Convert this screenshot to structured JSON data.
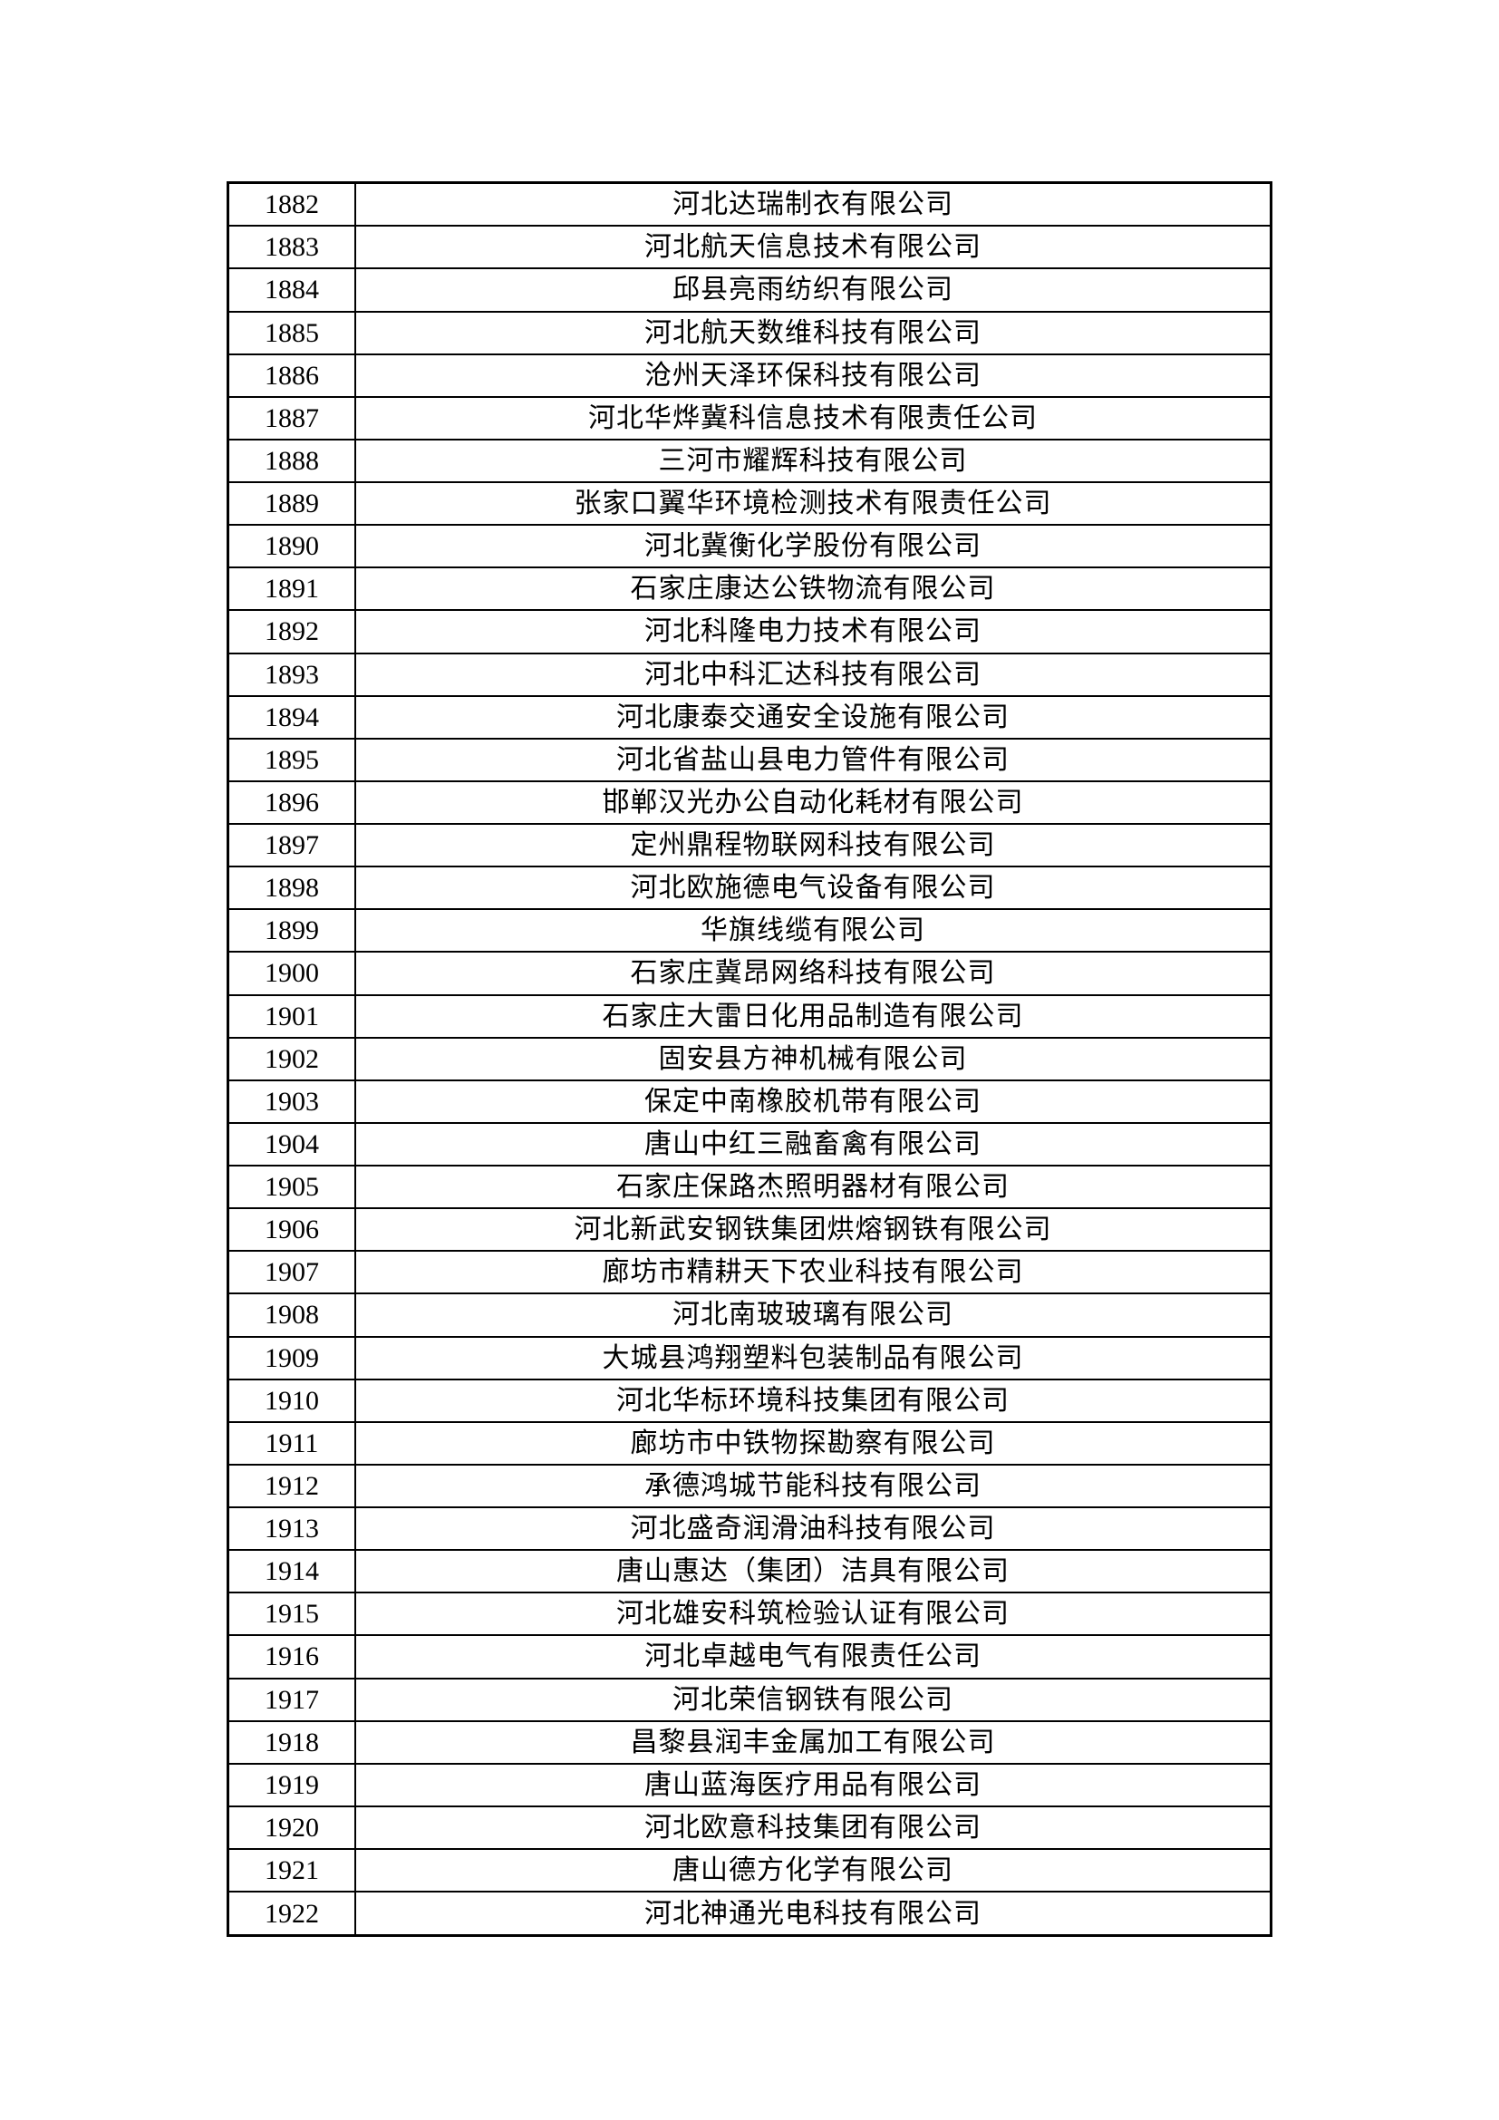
{
  "page": {
    "background_color": "#ffffff",
    "text_color": "#000000",
    "border_color": "#000000"
  },
  "table": {
    "rows": [
      {
        "no": "1882",
        "company": "河北达瑞制衣有限公司"
      },
      {
        "no": "1883",
        "company": "河北航天信息技术有限公司"
      },
      {
        "no": "1884",
        "company": "邱县亮雨纺织有限公司"
      },
      {
        "no": "1885",
        "company": "河北航天数维科技有限公司"
      },
      {
        "no": "1886",
        "company": "沧州天泽环保科技有限公司"
      },
      {
        "no": "1887",
        "company": "河北华烨冀科信息技术有限责任公司"
      },
      {
        "no": "1888",
        "company": "三河市耀辉科技有限公司"
      },
      {
        "no": "1889",
        "company": "张家口翼华环境检测技术有限责任公司"
      },
      {
        "no": "1890",
        "company": "河北冀衡化学股份有限公司"
      },
      {
        "no": "1891",
        "company": "石家庄康达公铁物流有限公司"
      },
      {
        "no": "1892",
        "company": "河北科隆电力技术有限公司"
      },
      {
        "no": "1893",
        "company": "河北中科汇达科技有限公司"
      },
      {
        "no": "1894",
        "company": "河北康泰交通安全设施有限公司"
      },
      {
        "no": "1895",
        "company": "河北省盐山县电力管件有限公司"
      },
      {
        "no": "1896",
        "company": "邯郸汉光办公自动化耗材有限公司"
      },
      {
        "no": "1897",
        "company": "定州鼎程物联网科技有限公司"
      },
      {
        "no": "1898",
        "company": "河北欧施德电气设备有限公司"
      },
      {
        "no": "1899",
        "company": "华旗线缆有限公司"
      },
      {
        "no": "1900",
        "company": "石家庄冀昂网络科技有限公司"
      },
      {
        "no": "1901",
        "company": "石家庄大雷日化用品制造有限公司"
      },
      {
        "no": "1902",
        "company": "固安县方神机械有限公司"
      },
      {
        "no": "1903",
        "company": "保定中南橡胶机带有限公司"
      },
      {
        "no": "1904",
        "company": "唐山中红三融畜禽有限公司"
      },
      {
        "no": "1905",
        "company": "石家庄保路杰照明器材有限公司"
      },
      {
        "no": "1906",
        "company": "河北新武安钢铁集团烘熔钢铁有限公司"
      },
      {
        "no": "1907",
        "company": "廊坊市精耕天下农业科技有限公司"
      },
      {
        "no": "1908",
        "company": "河北南玻玻璃有限公司"
      },
      {
        "no": "1909",
        "company": "大城县鸿翔塑料包装制品有限公司"
      },
      {
        "no": "1910",
        "company": "河北华标环境科技集团有限公司"
      },
      {
        "no": "1911",
        "company": "廊坊市中铁物探勘察有限公司"
      },
      {
        "no": "1912",
        "company": "承德鸿城节能科技有限公司"
      },
      {
        "no": "1913",
        "company": "河北盛奇润滑油科技有限公司"
      },
      {
        "no": "1914",
        "company": "唐山惠达（集团）洁具有限公司"
      },
      {
        "no": "1915",
        "company": "河北雄安科筑检验认证有限公司"
      },
      {
        "no": "1916",
        "company": "河北卓越电气有限责任公司"
      },
      {
        "no": "1917",
        "company": "河北荣信钢铁有限公司"
      },
      {
        "no": "1918",
        "company": "昌黎县润丰金属加工有限公司"
      },
      {
        "no": "1919",
        "company": "唐山蓝海医疗用品有限公司"
      },
      {
        "no": "1920",
        "company": "河北欧意科技集团有限公司"
      },
      {
        "no": "1921",
        "company": "唐山德方化学有限公司"
      },
      {
        "no": "1922",
        "company": "河北神通光电科技有限公司"
      }
    ]
  }
}
